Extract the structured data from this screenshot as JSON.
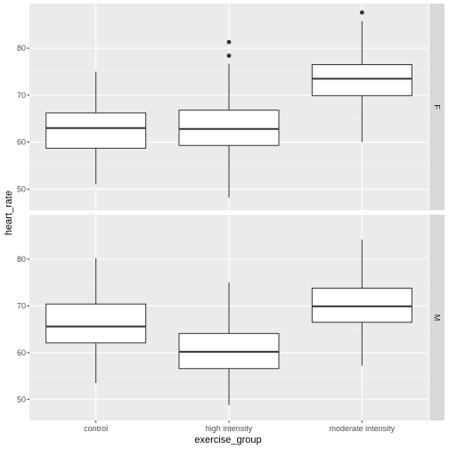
{
  "chart_data": {
    "type": "boxplot",
    "xlabel": "exercise_group",
    "ylabel": "heart_rate",
    "categories": [
      "control",
      "high intensity",
      "moderate intensity"
    ],
    "facet_by": "rows",
    "ylim": [
      45.5,
      89.5
    ],
    "y_ticks": [
      50,
      60,
      70,
      80
    ],
    "grid": true,
    "panels": [
      {
        "label": "F",
        "boxes": [
          {
            "category": "control",
            "whisker_low": 51.0,
            "q1": 58.7,
            "median": 63.0,
            "q3": 66.2,
            "whisker_high": 75.0,
            "outliers": []
          },
          {
            "category": "high intensity",
            "whisker_low": 48.2,
            "q1": 59.3,
            "median": 62.8,
            "q3": 66.8,
            "whisker_high": 76.7,
            "outliers": [
              78.4,
              81.3
            ]
          },
          {
            "category": "moderate intensity",
            "whisker_low": 60.0,
            "q1": 69.9,
            "median": 73.5,
            "q3": 76.5,
            "whisker_high": 85.8,
            "outliers": [
              87.6
            ]
          }
        ]
      },
      {
        "label": "M",
        "boxes": [
          {
            "category": "control",
            "whisker_low": 53.5,
            "q1": 62.1,
            "median": 65.6,
            "q3": 70.4,
            "whisker_high": 80.2,
            "outliers": []
          },
          {
            "category": "high intensity",
            "whisker_low": 48.8,
            "q1": 56.6,
            "median": 60.2,
            "q3": 64.1,
            "whisker_high": 75.0,
            "outliers": []
          },
          {
            "category": "moderate intensity",
            "whisker_low": 57.2,
            "q1": 66.5,
            "median": 69.9,
            "q3": 73.8,
            "whisker_high": 84.2,
            "outliers": []
          }
        ]
      }
    ],
    "colors": {
      "panel_background": "#ebebeb",
      "grid_major": "#ffffff",
      "grid_minor": "#f2f2f2",
      "strip_background": "#d9d9d9",
      "box_fill": "#ffffff",
      "box_stroke": "#333333",
      "tick_label": "#4d4d4d"
    }
  }
}
